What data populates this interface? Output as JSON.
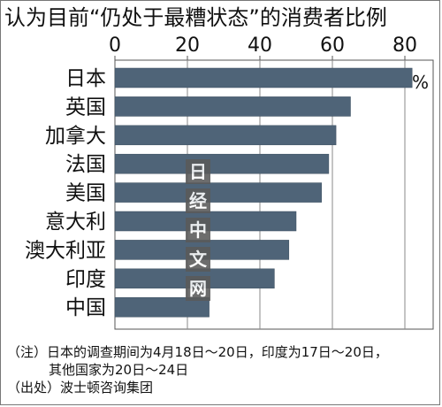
{
  "title": "认为目前“仍处于最糟状态”的消费者比例",
  "unit": "%",
  "chart_data": {
    "type": "bar",
    "orientation": "horizontal",
    "categories": [
      "日本",
      "英国",
      "加拿大",
      "法国",
      "美国",
      "意大利",
      "澳大利亚",
      "印度",
      "中国"
    ],
    "values": [
      82,
      65,
      61,
      59,
      57,
      50,
      48,
      44,
      26
    ],
    "xlim": [
      0,
      90
    ],
    "xticks": [
      0,
      20,
      40,
      60,
      80
    ],
    "grid": true,
    "bar_color": "#4f6478"
  },
  "watermark": [
    "日",
    "经",
    "中",
    "文",
    "网"
  ],
  "notes": {
    "line1": "（注）日本的调查期间为4月18日～20日，印度为17日～20日，",
    "line2": "其他国家为20日～24日",
    "line3": "（出处）波士顿咨询集团"
  }
}
